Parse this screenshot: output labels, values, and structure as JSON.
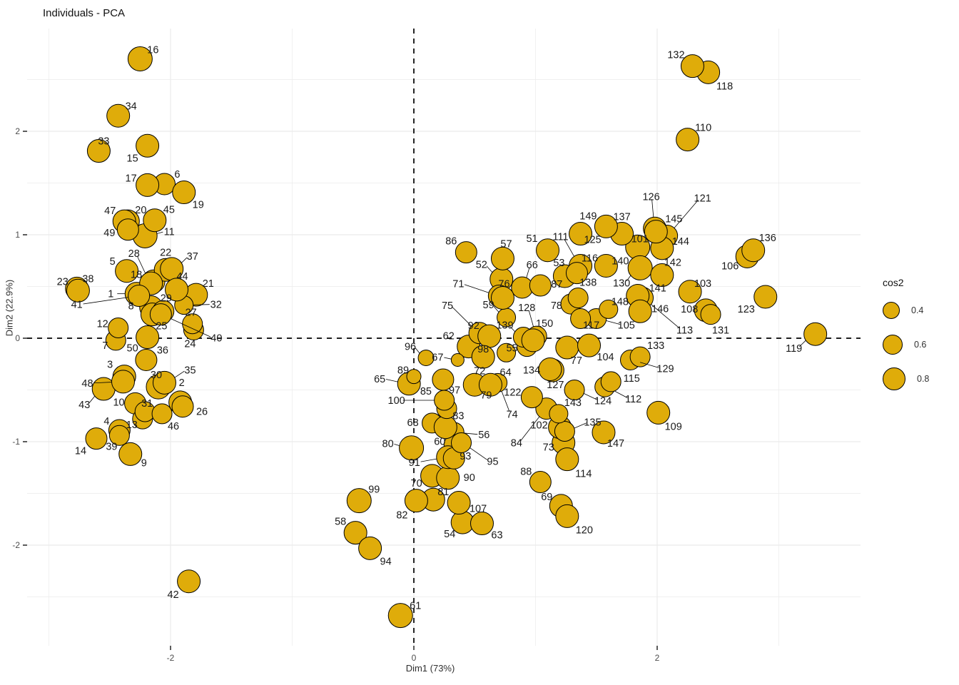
{
  "title": "Individuals - PCA",
  "axes": {
    "x_label": "Dim1 (73%)",
    "y_label": "Dim2 (22.9%)",
    "x_ticks": [
      -2,
      0,
      2
    ],
    "y_ticks": [
      2,
      1,
      0,
      -1,
      -2
    ],
    "x_minor": [
      -3,
      -1,
      1,
      3
    ],
    "y_minor": [
      -2.5,
      -1.5,
      -0.5,
      0.5,
      1.5,
      2.5
    ]
  },
  "legend": {
    "title": "cos2",
    "entries": [
      {
        "label": "0.4",
        "r": 11
      },
      {
        "label": "0.6",
        "r": 13
      },
      {
        "label": "0.8",
        "r": 15
      }
    ]
  },
  "style": {
    "point_fill": "#DFAC0A",
    "point_stroke": "#000000",
    "grid_color": "#EBEBEB",
    "tick_text_color": "#4D4D4D",
    "label_text_color": "#1A1A1A",
    "ref_line_color": "#000000"
  },
  "chart_data": {
    "type": "scatter",
    "title": "Individuals - PCA",
    "xlabel": "Dim1 (73%)",
    "ylabel": "Dim2 (22.9%)",
    "xlim": [
      -3.18,
      3.67
    ],
    "ylim": [
      -3.0,
      3.0
    ],
    "grid": true,
    "legend_position": "right",
    "size_legend": {
      "title": "cos2",
      "breaks": [
        0.4,
        0.6,
        0.8
      ]
    },
    "ref_lines": {
      "x": 0,
      "y": 0
    },
    "points": [
      [
        "1",
        -2.28,
        0.43,
        16,
        -36,
        0
      ],
      [
        "2",
        -1.92,
        -0.62,
        16,
        2,
        -28
      ],
      [
        "3",
        -2.38,
        -0.37,
        16,
        -20,
        -17
      ],
      [
        "4",
        -2.42,
        -0.89,
        15,
        -18,
        -13
      ],
      [
        "5",
        -2.36,
        0.65,
        16,
        -20,
        -14
      ],
      [
        "6",
        -2.05,
        1.49,
        15,
        18,
        -14
      ],
      [
        "7",
        -2.45,
        -0.02,
        14,
        -15,
        7
      ],
      [
        "8",
        -2.16,
        0.3,
        16,
        -28,
        -2
      ],
      [
        "9",
        -2.33,
        -1.12,
        16,
        19,
        12
      ],
      [
        "10",
        -2.29,
        -0.63,
        15,
        -23,
        -2
      ],
      [
        "11",
        -2.21,
        0.99,
        17,
        34,
        -6
      ],
      [
        "12",
        -2.43,
        0.1,
        14,
        -22,
        -6
      ],
      [
        "13",
        -2.23,
        -0.78,
        14,
        -15,
        8
      ],
      [
        "14",
        -2.61,
        -0.97,
        15,
        -22,
        17
      ],
      [
        "15",
        -2.19,
        1.86,
        16,
        -21,
        17
      ],
      [
        "16",
        -2.25,
        2.7,
        17,
        18,
        -13
      ],
      [
        "17",
        -2.19,
        1.48,
        16,
        -23,
        -10
      ],
      [
        "18",
        -2.14,
        0.55,
        16,
        -24,
        -10
      ],
      [
        "19",
        -1.89,
        1.41,
        16,
        20,
        17
      ],
      [
        "20",
        -2.35,
        1.13,
        16,
        18,
        -16
      ],
      [
        "21",
        -1.79,
        0.42,
        16,
        17,
        -16
      ],
      [
        "22",
        -2.04,
        0.66,
        16,
        0,
        -25
      ],
      [
        "23",
        -2.77,
        0.48,
        16,
        -20,
        -10
      ],
      [
        "24",
        -1.81,
        0.08,
        14,
        -5,
        19
      ],
      [
        "25",
        -2.15,
        0.23,
        16,
        13,
        16
      ],
      [
        "26",
        -1.9,
        -0.66,
        15,
        27,
        7
      ],
      [
        "27",
        -1.82,
        0.14,
        14,
        -2,
        -16
      ],
      [
        "28",
        -2.16,
        0.53,
        16,
        -24,
        -42
      ],
      [
        "29",
        -2.06,
        0.26,
        15,
        4,
        -19
      ],
      [
        "30",
        -2.1,
        -0.47,
        17,
        -3,
        -17
      ],
      [
        "31",
        -2.21,
        -0.71,
        14,
        3,
        -12
      ],
      [
        "32",
        -1.89,
        0.32,
        13,
        45,
        -1
      ],
      [
        "33",
        -2.59,
        1.81,
        16,
        7,
        -14
      ],
      [
        "34",
        -2.43,
        2.15,
        16,
        18,
        -14
      ],
      [
        "35",
        -2.05,
        -0.43,
        16,
        36,
        -18
      ],
      [
        "36",
        -2.2,
        -0.21,
        15,
        23,
        -14
      ],
      [
        "37",
        -1.99,
        0.67,
        16,
        29,
        -18
      ],
      [
        "38",
        -2.76,
        0.46,
        16,
        14,
        -17
      ],
      [
        "39",
        -2.42,
        -0.94,
        14,
        -11,
        15
      ],
      [
        "40",
        -2.08,
        0.23,
        15,
        78,
        33
      ],
      [
        "41",
        -2.26,
        0.41,
        15,
        -87,
        12
      ],
      [
        "42",
        -1.85,
        -2.35,
        16,
        -22,
        18
      ],
      [
        "43",
        -2.55,
        -0.49,
        16,
        -27,
        22
      ],
      [
        "44",
        -1.95,
        0.47,
        16,
        8,
        -19
      ],
      [
        "45",
        -2.13,
        1.14,
        16,
        20,
        -15
      ],
      [
        "46",
        -2.07,
        -0.73,
        14,
        16,
        17
      ],
      [
        "47",
        -2.38,
        1.13,
        16,
        -20,
        -15
      ],
      [
        "48",
        -2.39,
        -0.42,
        16,
        -50,
        2
      ],
      [
        "49",
        -2.35,
        1.05,
        15,
        -26,
        4
      ],
      [
        "50",
        -2.19,
        0.01,
        16,
        -21,
        15
      ],
      [
        "51",
        1.1,
        0.85,
        16,
        -22,
        -17
      ],
      [
        "52",
        0.72,
        0.57,
        16,
        -28,
        -21
      ],
      [
        "53",
        1.24,
        0.6,
        16,
        -8,
        -19
      ],
      [
        "54",
        0.4,
        -1.78,
        16,
        -18,
        16
      ],
      [
        "55",
        0.93,
        -0.08,
        14,
        -21,
        2
      ],
      [
        "56",
        0.33,
        -0.91,
        14,
        42,
        3
      ],
      [
        "57",
        0.73,
        0.77,
        16,
        5,
        -21
      ],
      [
        "58",
        -0.48,
        -1.88,
        16,
        -21,
        -16
      ],
      [
        "59",
        0.76,
        0.2,
        13,
        -25,
        -18
      ],
      [
        "60",
        0.33,
        -1.03,
        14,
        -20,
        -5
      ],
      [
        "61",
        -0.11,
        -2.68,
        17,
        21,
        -14
      ],
      [
        "62",
        0.45,
        -0.08,
        16,
        -28,
        -15
      ],
      [
        "63",
        0.56,
        -1.79,
        16,
        21,
        16
      ],
      [
        "64",
        0.76,
        -0.14,
        13,
        -1,
        27
      ],
      [
        "65",
        -0.04,
        -0.44,
        16,
        -41,
        -7
      ],
      [
        "66",
        0.89,
        0.49,
        15,
        14,
        -32
      ],
      [
        "67",
        0.36,
        -0.21,
        9,
        -28,
        -4
      ],
      [
        "68",
        0.15,
        -0.82,
        14,
        -27,
        -1
      ],
      [
        "69",
        1.21,
        -1.62,
        16,
        -20,
        -13
      ],
      [
        "70",
        0.15,
        -1.33,
        16,
        -22,
        10
      ],
      [
        "71",
        0.7,
        0.41,
        15,
        -57,
        -17
      ],
      [
        "72",
        0.5,
        -0.45,
        16,
        7,
        -20
      ],
      [
        "73",
        1.23,
        -1.01,
        16,
        -21,
        6
      ],
      [
        "74",
        0.69,
        -0.43,
        13,
        20,
        44
      ],
      [
        "75",
        0.54,
        0.05,
        15,
        -45,
        -39
      ],
      [
        "76",
        0.73,
        0.39,
        16,
        2,
        -20
      ],
      [
        "77",
        1.26,
        -0.09,
        16,
        13,
        18
      ],
      [
        "78",
        1.29,
        0.33,
        14,
        -20,
        2
      ],
      [
        "79",
        0.63,
        -0.45,
        16,
        -6,
        14
      ],
      [
        "80",
        -0.02,
        -1.06,
        17,
        -33,
        -6
      ],
      [
        "81",
        0.16,
        -1.56,
        16,
        14,
        -11
      ],
      [
        "82",
        0.02,
        -1.57,
        16,
        -20,
        20
      ],
      [
        "83",
        0.26,
        -0.86,
        16,
        18,
        -16
      ],
      [
        "84",
        1.09,
        -0.68,
        15,
        -42,
        48
      ],
      [
        "85",
        0.24,
        -0.4,
        15,
        -24,
        16
      ],
      [
        "86",
        0.43,
        0.83,
        15,
        -21,
        -16
      ],
      [
        "87",
        1.04,
        0.51,
        15,
        23,
        -2
      ],
      [
        "88",
        1.04,
        -1.39,
        15,
        -20,
        -15
      ],
      [
        "89",
        0.0,
        -0.37,
        10,
        -15,
        -9
      ],
      [
        "90",
        0.28,
        -1.35,
        16,
        30,
        -1
      ],
      [
        "91",
        0.28,
        -1.15,
        16,
        -47,
        7
      ],
      [
        "92",
        0.62,
        0.02,
        16,
        -22,
        -15
      ],
      [
        "93",
        0.33,
        -1.16,
        15,
        16,
        -3
      ],
      [
        "94",
        -0.36,
        -2.03,
        16,
        22,
        18
      ],
      [
        "95",
        0.39,
        -1.01,
        14,
        44,
        26
      ],
      [
        "96",
        0.1,
        -0.19,
        11,
        -22,
        -16
      ],
      [
        "97",
        0.27,
        -0.68,
        14,
        11,
        -26
      ],
      [
        "98",
        0.57,
        -0.18,
        16,
        0,
        -11
      ],
      [
        "99",
        -0.45,
        -1.57,
        17,
        21,
        -16
      ],
      [
        "100",
        0.25,
        -0.6,
        14,
        -67,
        0
      ],
      [
        "101",
        1.84,
        0.88,
        17,
        3,
        -12
      ],
      [
        "102",
        1.2,
        -0.86,
        16,
        -29,
        -3
      ],
      [
        "103",
        2.27,
        0.45,
        16,
        18,
        -12
      ],
      [
        "104",
        1.44,
        -0.07,
        16,
        23,
        16
      ],
      [
        "105",
        1.5,
        0.19,
        14,
        42,
        9
      ],
      [
        "106",
        2.74,
        0.79,
        16,
        -24,
        13
      ],
      [
        "107",
        0.37,
        -1.59,
        16,
        27,
        8
      ],
      [
        "108",
        2.4,
        0.27,
        16,
        -23,
        -2
      ],
      [
        "109",
        2.01,
        -0.72,
        16,
        21,
        19
      ],
      [
        "110",
        2.25,
        1.92,
        16,
        22,
        -17
      ],
      [
        "111",
        1.37,
        0.7,
        16,
        -28,
        -41
      ],
      [
        "112",
        1.57,
        -0.47,
        14,
        40,
        17
      ],
      [
        "113",
        1.88,
        0.39,
        15,
        59,
        45
      ],
      [
        "114",
        1.26,
        -1.17,
        16,
        23,
        20
      ],
      [
        "115",
        1.62,
        -0.42,
        14,
        29,
        -5
      ],
      [
        "116",
        1.34,
        0.63,
        15,
        18,
        -21
      ],
      [
        "117",
        1.37,
        0.19,
        14,
        15,
        9
      ],
      [
        "118",
        2.42,
        2.57,
        16,
        23,
        19
      ],
      [
        "119",
        3.3,
        0.04,
        16,
        -30,
        20
      ],
      [
        "120",
        1.26,
        -1.72,
        16,
        24,
        19
      ],
      [
        "121",
        2.08,
        0.99,
        15,
        50,
        -53
      ],
      [
        "122",
        0.97,
        -0.57,
        15,
        -27,
        -7
      ],
      [
        "123",
        2.89,
        0.4,
        16,
        -27,
        17
      ],
      [
        "124",
        1.32,
        -0.5,
        14,
        40,
        15
      ],
      [
        "125",
        1.37,
        1.01,
        16,
        17,
        8
      ],
      [
        "126",
        1.98,
        1.06,
        16,
        -5,
        -45
      ],
      [
        "127",
        1.14,
        -0.31,
        16,
        4,
        20
      ],
      [
        "128",
        1.01,
        0.02,
        14,
        -14,
        -40
      ],
      [
        "129",
        1.78,
        -0.21,
        14,
        49,
        12
      ],
      [
        "130",
        1.86,
        0.68,
        17,
        -26,
        21
      ],
      [
        "131",
        2.44,
        0.23,
        14,
        14,
        22
      ],
      [
        "132",
        2.29,
        2.63,
        16,
        -23,
        -16
      ],
      [
        "133",
        1.86,
        -0.18,
        14,
        22,
        -16
      ],
      [
        "134",
        1.12,
        -0.3,
        16,
        -26,
        1
      ],
      [
        "135",
        1.24,
        -0.9,
        14,
        39,
        -13
      ],
      [
        "136",
        2.79,
        0.85,
        16,
        20,
        -18
      ],
      [
        "137",
        1.71,
        1.01,
        16,
        0,
        -24
      ],
      [
        "138",
        1.35,
        0.39,
        14,
        14,
        -22
      ],
      [
        "139",
        0.9,
        0.01,
        14,
        -26,
        -17
      ],
      [
        "140",
        1.58,
        0.7,
        16,
        20,
        -7
      ],
      [
        "141",
        1.84,
        0.41,
        16,
        28,
        -11
      ],
      [
        "142",
        2.04,
        0.61,
        16,
        15,
        -18
      ],
      [
        "143",
        1.19,
        -0.73,
        13,
        20,
        -16
      ],
      [
        "144",
        2.04,
        0.87,
        16,
        26,
        -10
      ],
      [
        "145",
        1.99,
        1.03,
        16,
        25,
        -18
      ],
      [
        "146",
        1.86,
        0.26,
        16,
        28,
        -4
      ],
      [
        "147",
        1.56,
        -0.91,
        16,
        17,
        15
      ],
      [
        "148",
        1.6,
        0.28,
        13,
        16,
        -11
      ],
      [
        "149",
        1.58,
        1.08,
        16,
        -25,
        -15
      ],
      [
        "150",
        0.98,
        -0.02,
        16,
        16,
        -24
      ]
    ]
  }
}
